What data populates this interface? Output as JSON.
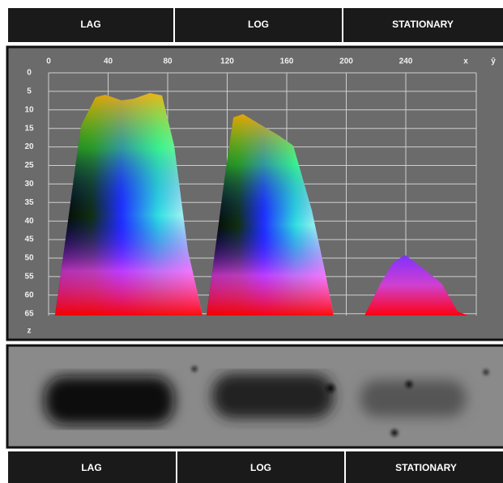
{
  "header": {
    "tabs": [
      "LAG",
      "LOG",
      "STATIONARY"
    ]
  },
  "plot": {
    "x_ticks": [
      0,
      40,
      80,
      120,
      160,
      200,
      240
    ],
    "x_label": "x",
    "y_label": "ŷ",
    "y_ticks": [
      0,
      5,
      10,
      15,
      20,
      25,
      30,
      35,
      40,
      45,
      50,
      55,
      60,
      65
    ],
    "z_label": "z"
  },
  "footer": {
    "tabs": [
      "LAG",
      "LOG",
      "STATIONARY"
    ]
  }
}
